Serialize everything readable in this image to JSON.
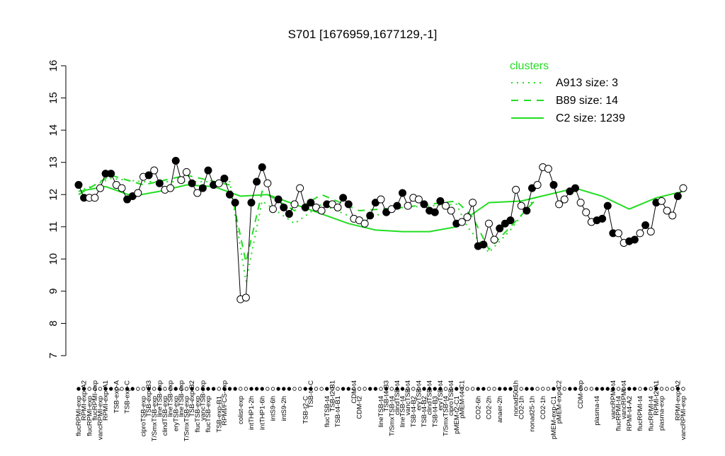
{
  "chart_data": {
    "type": "line",
    "title": "S701 [1676959,1677129,-1]",
    "categories": [
      "flucRPMI-exp",
      "RPMI-exp-A2",
      "flucRPMI-exp",
      "flucRPMI-exp",
      "vancRPMI-exp",
      "RPMI-exp-A1",
      null,
      "TSB-exp-A",
      null,
      "TSB-exp-C",
      null,
      null,
      "ciproTSB-exp",
      "TSB-exp-B3",
      "T/SmxTSB-exp",
      "lineTSB-exp",
      "clindTSB-exp",
      "lineTSB-exp",
      "eryTSB-exp",
      "lineTSB-exp",
      "T/SmxTSB-exp",
      "TSB-exp-B2",
      "flucTSB-exp",
      "vancTSB-exp",
      "flucTSB-exp",
      null,
      "TSB-exp-B1",
      "RPMI/FCS-exp",
      null,
      null,
      "colist-exp",
      null,
      "intTHP1-2h",
      null,
      "intTHP1-6h",
      null,
      "intS9-6h",
      null,
      "intS9-2h",
      null,
      null,
      null,
      "TSB-t2-C",
      "TSB-t4-C",
      null,
      null,
      "flucTSB-t4",
      "TSB-t2-B1",
      "TSB-t4-B1",
      null,
      null,
      "CDM-t4",
      "CDM-t2",
      null,
      null,
      null,
      "lineTSB-t4",
      "TSB-t4-B3",
      "T/SmxTSB-t4",
      "clindTSB-t4",
      "lineTSB-t4",
      "vancTSB-t4",
      "TSB-t4-B2",
      "eryTSB-t4",
      "TSB-t4-B2",
      "clindTSB-t4",
      "TSB-t4-B3",
      "eryTSB-t4",
      "T/SmxTSB-t4",
      "ciproTSB-t4",
      "pMEM-t2-C1",
      "pMEM-t4-C1",
      null,
      null,
      "CO2-6h",
      null,
      "CO2-2h",
      null,
      "anaer-2h",
      null,
      null,
      "nonad50-1h",
      "CO2-1h",
      null,
      "nonad25-1h",
      null,
      "CO2-1h",
      null,
      "pMEM-exp-C1",
      "pMEM-exp-C2",
      null,
      null,
      null,
      "CDM-exp",
      null,
      null,
      "plasma-t4",
      null,
      null,
      "vancRPMI-t4",
      "flucRPMI-t4",
      "vancRPMI-t4",
      "RPMI-t4-A2",
      null,
      "flucRPMI-t4",
      null,
      "flucRPMI-t4",
      "RPMI-t2-A1",
      "plasma-exp",
      null,
      null,
      "RPMI-exp-A2",
      "vancRPMI-exp"
    ],
    "values": [
      12.3,
      11.9,
      11.9,
      11.9,
      12.2,
      12.65,
      12.65,
      12.3,
      12.2,
      11.85,
      11.95,
      12.05,
      12.55,
      12.6,
      12.75,
      12.35,
      12.15,
      12.2,
      13.05,
      12.45,
      12.7,
      12.35,
      12.05,
      12.2,
      12.75,
      12.3,
      12.35,
      12.5,
      12.0,
      11.75,
      8.75,
      8.8,
      11.75,
      12.4,
      12.85,
      12.35,
      11.55,
      11.85,
      11.6,
      11.4,
      11.7,
      12.2,
      11.6,
      11.75,
      11.6,
      11.5,
      11.7,
      11.7,
      11.6,
      11.9,
      11.7,
      11.25,
      11.2,
      11.1,
      11.35,
      11.75,
      11.85,
      11.45,
      11.55,
      11.65,
      12.05,
      11.65,
      11.9,
      11.85,
      11.7,
      11.5,
      11.45,
      11.8,
      11.65,
      11.5,
      11.1,
      11.15,
      11.3,
      11.75,
      10.4,
      10.45,
      11.1,
      10.6,
      10.95,
      11.1,
      11.2,
      12.15,
      11.65,
      11.5,
      12.2,
      12.3,
      12.85,
      12.8,
      12.3,
      11.7,
      11.85,
      12.1,
      12.2,
      11.75,
      11.45,
      11.15,
      11.2,
      11.25,
      11.65,
      10.8,
      10.8,
      10.5,
      10.55,
      10.6,
      10.8,
      11.05,
      10.85,
      11.75,
      11.8,
      11.5,
      11.35,
      11.95,
      12.2
    ],
    "filled": [
      true,
      true,
      false,
      false,
      false,
      true,
      true,
      false,
      false,
      true,
      true,
      false,
      false,
      true,
      false,
      true,
      false,
      false,
      true,
      false,
      false,
      true,
      false,
      true,
      true,
      true,
      false,
      true,
      true,
      true,
      false,
      false,
      true,
      true,
      true,
      false,
      false,
      true,
      true,
      true,
      false,
      false,
      true,
      true,
      false,
      false,
      true,
      false,
      false,
      true,
      true,
      false,
      false,
      false,
      true,
      true,
      false,
      true,
      false,
      true,
      true,
      false,
      false,
      false,
      true,
      true,
      true,
      true,
      false,
      false,
      true,
      false,
      false,
      false,
      true,
      true,
      false,
      false,
      true,
      true,
      true,
      false,
      false,
      true,
      true,
      false,
      false,
      false,
      true,
      false,
      false,
      true,
      true,
      false,
      false,
      false,
      true,
      true,
      true,
      true,
      false,
      false,
      true,
      true,
      false,
      true,
      false,
      true,
      false,
      false,
      false,
      true,
      false
    ],
    "color": "#000000",
    "ylim": [
      7,
      16
    ],
    "yticks": [
      7,
      8,
      9,
      10,
      11,
      12,
      13,
      14,
      15,
      16
    ],
    "legend_title": "clusters",
    "legend": "top-right",
    "series": [
      {
        "name": "A913 size: 3",
        "color": "#22dd22",
        "style": "dotted",
        "x": [
          0,
          6,
          12,
          20,
          28,
          31,
          34,
          40,
          45,
          52,
          60,
          70,
          72,
          76,
          80,
          85
        ],
        "values": [
          12.1,
          12.5,
          12.4,
          12.4,
          12.4,
          9.3,
          11.8,
          11.1,
          11.7,
          11.2,
          11.6,
          11.7,
          11.0,
          10.2,
          10.9,
          12.0
        ]
      },
      {
        "name": "B89 size: 14",
        "color": "#22dd22",
        "style": "dashed",
        "x": [
          0,
          6,
          12,
          20,
          28,
          31,
          34,
          40,
          45,
          52,
          60,
          70,
          73,
          76,
          80,
          85
        ],
        "values": [
          12.0,
          12.6,
          12.3,
          12.6,
          12.3,
          9.9,
          12.1,
          11.5,
          12.0,
          11.5,
          11.6,
          11.8,
          11.3,
          10.3,
          11.0,
          11.9
        ]
      },
      {
        "name": "C2 size: 1239",
        "color": "#22dd22",
        "style": "solid",
        "x": [
          0,
          5,
          10,
          15,
          20,
          25,
          30,
          35,
          40,
          45,
          50,
          55,
          60,
          65,
          70,
          73,
          76,
          82,
          87,
          92,
          97,
          102,
          107,
          112
        ],
        "values": [
          12.1,
          12.25,
          11.95,
          12.1,
          12.3,
          12.25,
          11.95,
          12.0,
          11.7,
          11.4,
          11.1,
          10.9,
          10.85,
          10.85,
          11.0,
          11.4,
          11.75,
          11.8,
          12.0,
          12.2,
          11.95,
          11.55,
          11.9,
          12.1
        ]
      }
    ]
  }
}
